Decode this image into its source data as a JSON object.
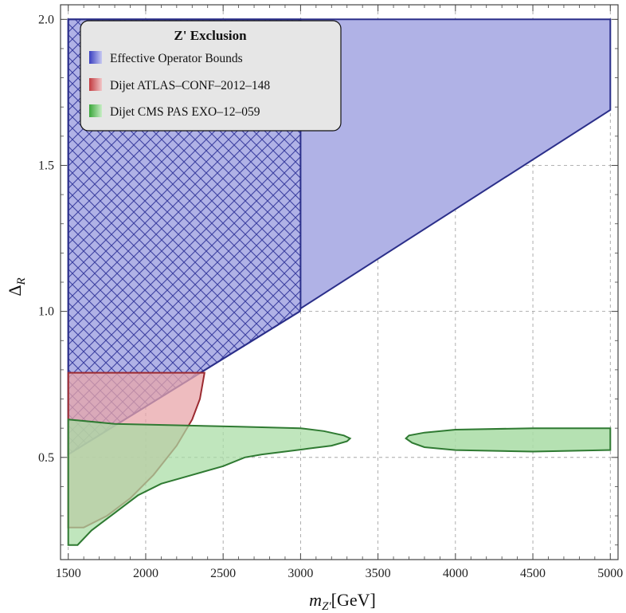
{
  "chart_data": {
    "type": "area",
    "title": "",
    "xlabel": "m",
    "xlabel_sub": "Z'",
    "xlabel_unit": "[GeV]",
    "ylabel": "Δ",
    "ylabel_sub": "R",
    "xlim": [
      1450,
      5050
    ],
    "ylim": [
      0.15,
      2.05
    ],
    "x_ticks": [
      1500,
      2000,
      2500,
      3000,
      3500,
      4000,
      4500,
      5000
    ],
    "y_ticks": [
      0.5,
      1.0,
      1.5,
      2.0
    ],
    "y_tick_labels": [
      "0.5",
      "1.0",
      "1.5",
      "2.0"
    ],
    "grid": true,
    "legend": {
      "title": "Z' Exclusion",
      "placement": "top-left",
      "entries": [
        "Effective Operator Bounds",
        "Dijet ATLAS–CONF–2012–148",
        "Dijet CMS PAS EXO–12–059"
      ]
    },
    "colors": {
      "effective": "#b0b2e6",
      "effective_edge": "#2b2f8a",
      "hatch": "#3c40a0",
      "atlas": "#e8a6aa",
      "atlas_edge": "#9b2a30",
      "cms": "#a8dca4",
      "cms_edge": "#2f7a32"
    },
    "series": [
      {
        "name": "Effective Operator Bounds",
        "polygon": [
          [
            1500,
            0.51
          ],
          [
            1500,
            2.0
          ],
          [
            5000,
            2.0
          ],
          [
            5000,
            1.69
          ],
          [
            3000,
            1.01
          ],
          [
            2995,
            1.0
          ],
          [
            1500,
            0.51
          ]
        ]
      },
      {
        "name": "Effective Operator Bounds",
        "hatched_region": [
          [
            1500,
            0.51
          ],
          [
            1500,
            2.0
          ],
          [
            3000,
            2.0
          ],
          [
            3000,
            1.01
          ],
          [
            2995,
            1.0
          ],
          [
            1500,
            0.51
          ]
        ]
      },
      {
        "name": "Dijet ATLAS–CONF–2012–148",
        "polygon": [
          [
            1500,
            0.26
          ],
          [
            1500,
            0.79
          ],
          [
            2380,
            0.79
          ],
          [
            2370,
            0.76
          ],
          [
            2350,
            0.7
          ],
          [
            2300,
            0.63
          ],
          [
            2200,
            0.54
          ],
          [
            2050,
            0.44
          ],
          [
            1900,
            0.36
          ],
          [
            1750,
            0.3
          ],
          [
            1600,
            0.26
          ],
          [
            1500,
            0.26
          ]
        ]
      },
      {
        "name": "Dijet CMS PAS EXO–12–059",
        "polygon": [
          [
            1500,
            0.2
          ],
          [
            1500,
            0.63
          ],
          [
            1800,
            0.615
          ],
          [
            2200,
            0.61
          ],
          [
            2600,
            0.605
          ],
          [
            3000,
            0.6
          ],
          [
            3150,
            0.59
          ],
          [
            3280,
            0.575
          ],
          [
            3320,
            0.565
          ],
          [
            3300,
            0.555
          ],
          [
            3200,
            0.54
          ],
          [
            3050,
            0.53
          ],
          [
            2900,
            0.52
          ],
          [
            2750,
            0.51
          ],
          [
            2640,
            0.5
          ],
          [
            2500,
            0.47
          ],
          [
            2300,
            0.44
          ],
          [
            2100,
            0.41
          ],
          [
            1950,
            0.37
          ],
          [
            1800,
            0.31
          ],
          [
            1650,
            0.25
          ],
          [
            1560,
            0.2
          ],
          [
            1500,
            0.2
          ]
        ]
      },
      {
        "name": "Dijet CMS PAS EXO–12–059",
        "polygon": [
          [
            3680,
            0.565
          ],
          [
            3700,
            0.575
          ],
          [
            3800,
            0.585
          ],
          [
            4000,
            0.595
          ],
          [
            4500,
            0.6
          ],
          [
            5000,
            0.6
          ],
          [
            5000,
            0.525
          ],
          [
            4500,
            0.52
          ],
          [
            4000,
            0.525
          ],
          [
            3800,
            0.535
          ],
          [
            3720,
            0.55
          ],
          [
            3680,
            0.565
          ]
        ]
      }
    ]
  }
}
